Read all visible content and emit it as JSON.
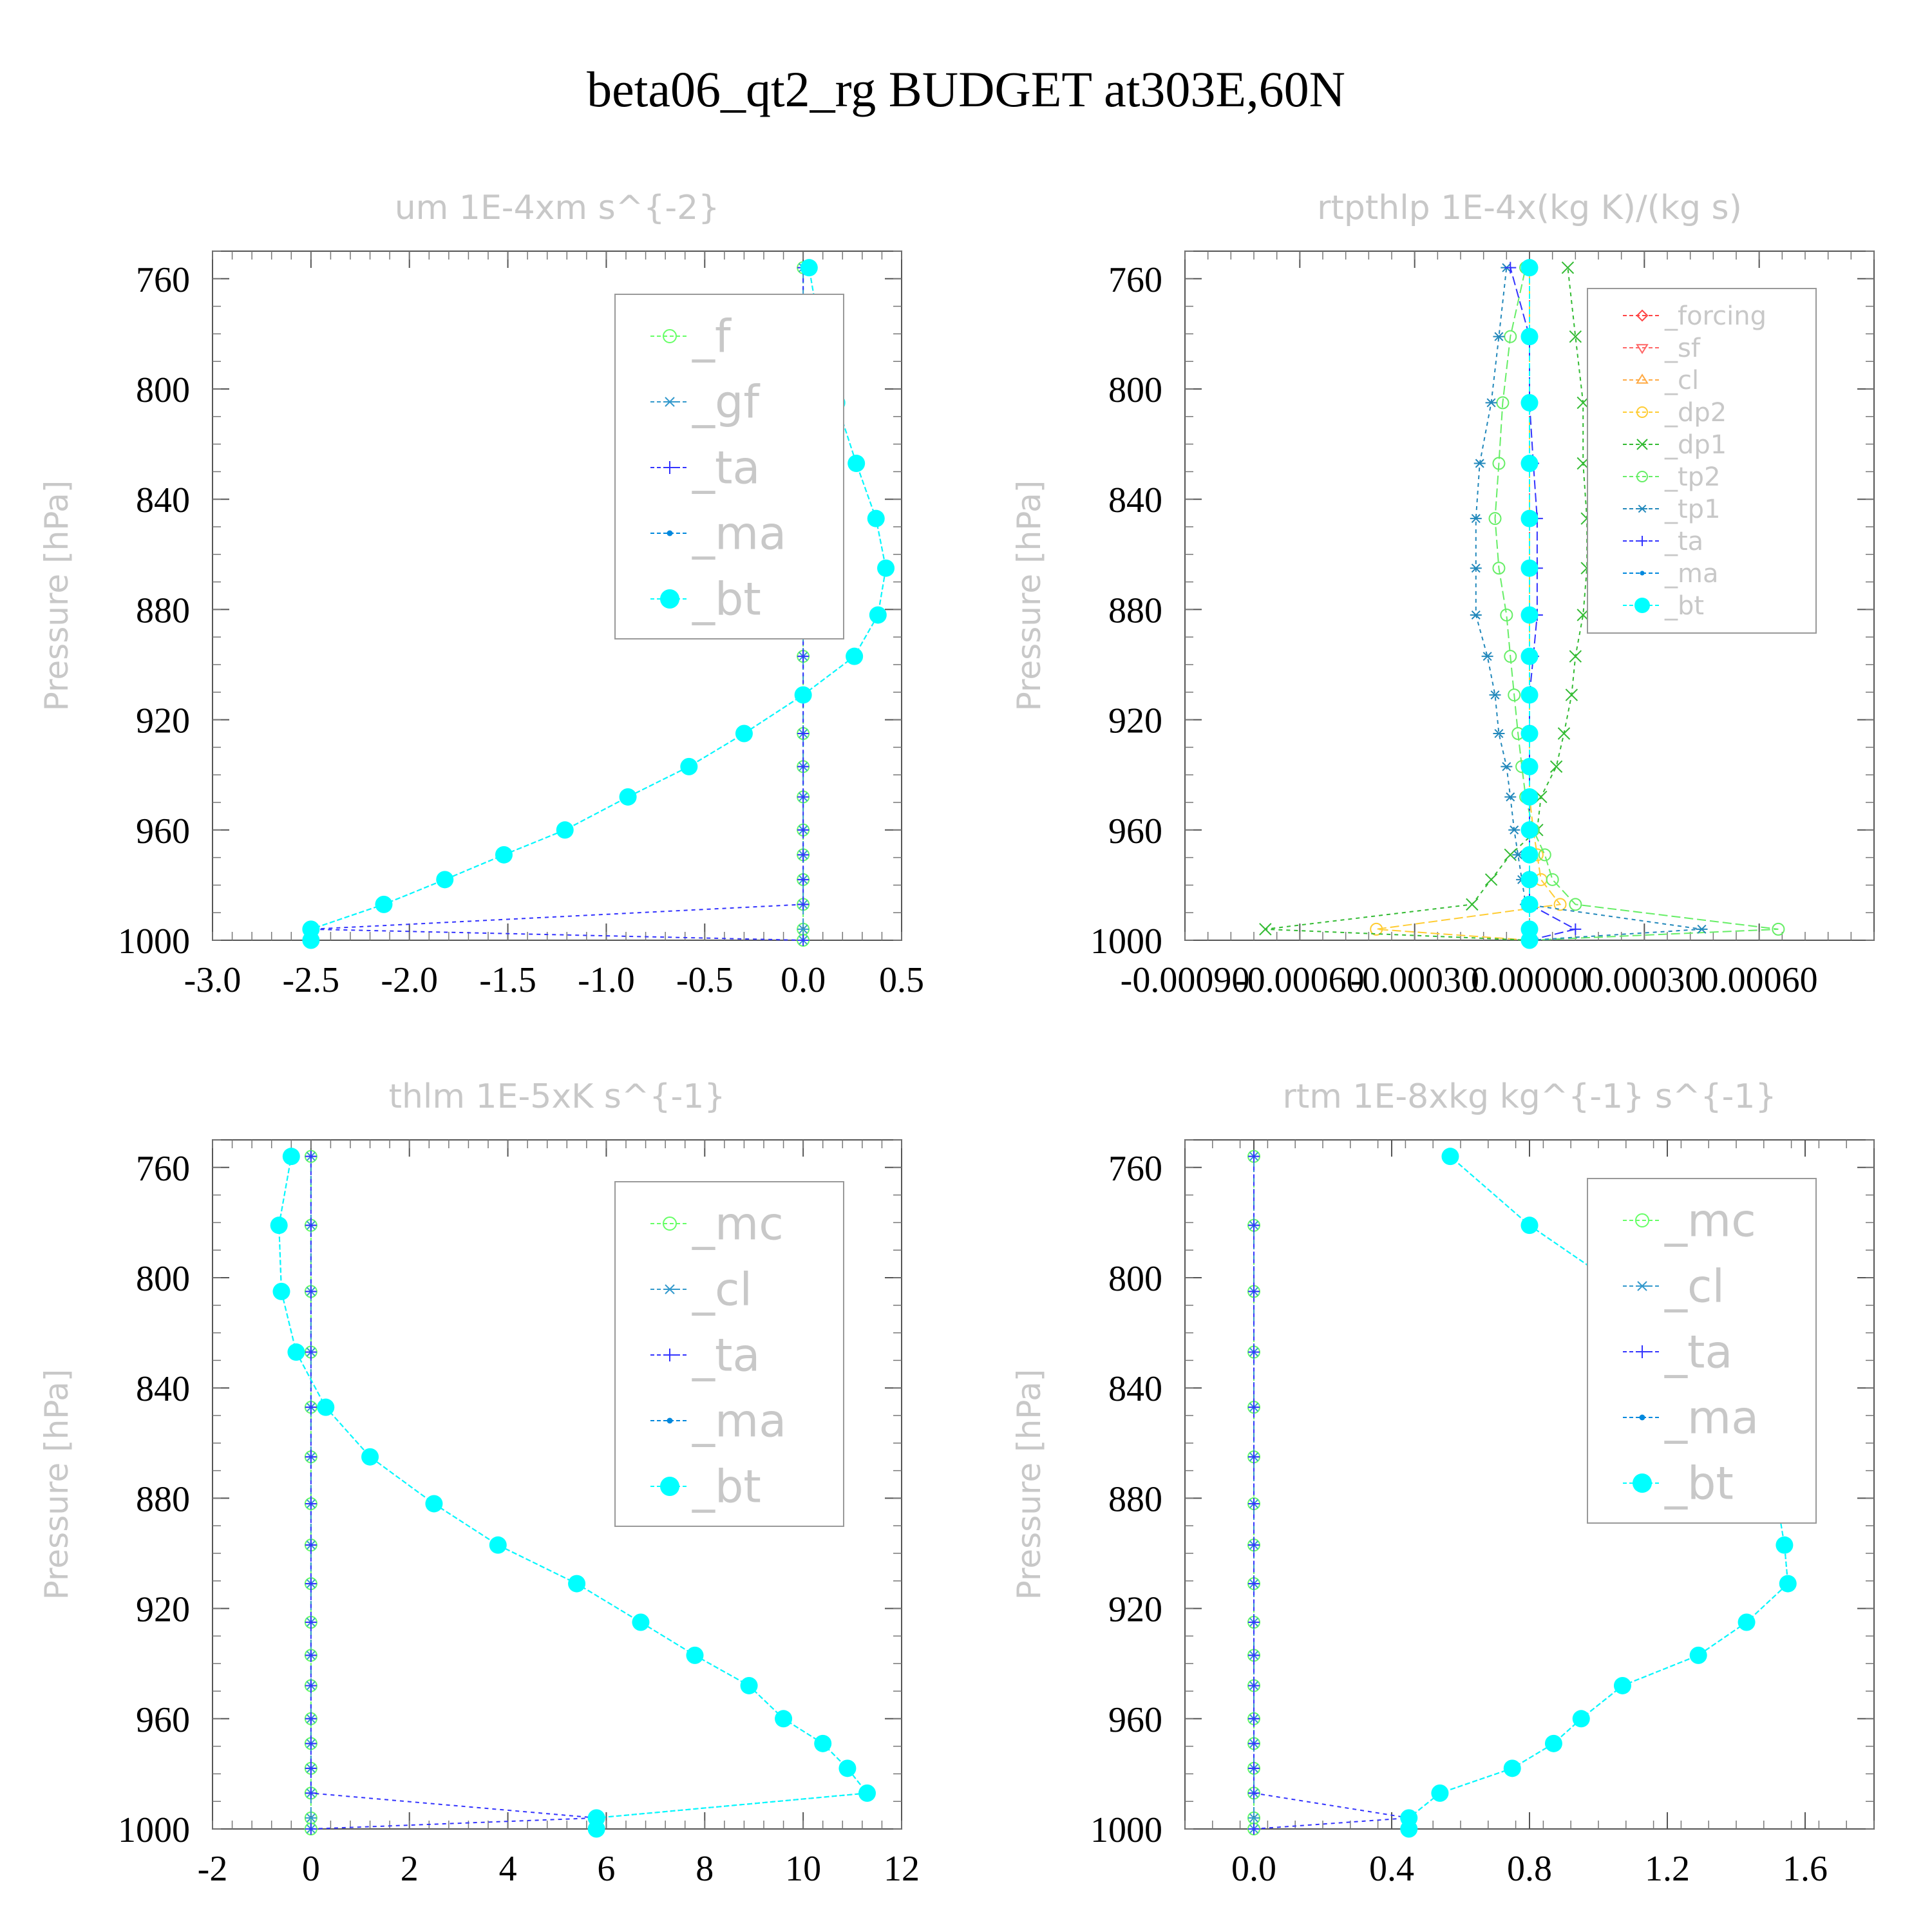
{
  "suptitle": "beta06_qt2_rg  BUDGET at303E,60N",
  "chart_data": [
    {
      "type": "line",
      "title": "um  1E-4xm s^{-2}",
      "ylabel": "Pressure [hPa]",
      "xlim": [
        -3.0,
        0.5
      ],
      "ylim": [
        1000,
        750
      ],
      "xticks": [
        "-3.0",
        "-2.5",
        "-2.0",
        "-1.5",
        "-1.0",
        "-0.5",
        "0.0",
        "0.5"
      ],
      "yticks": [
        "760",
        "800",
        "840",
        "880",
        "920",
        "960",
        "1000"
      ],
      "y": [
        1000,
        996,
        987,
        978,
        969,
        960,
        948,
        937,
        925,
        911,
        897,
        882,
        865,
        847,
        827,
        805,
        781,
        756
      ],
      "series": [
        {
          "name": "_f",
          "color": "#66ff66",
          "marker": "circle",
          "values": [
            0,
            0,
            0,
            0,
            0,
            0,
            0,
            0,
            0,
            0,
            0,
            0,
            0,
            0,
            0,
            0,
            0,
            0
          ]
        },
        {
          "name": "_gf",
          "color": "#3399cc",
          "marker": "asterisk",
          "values": [
            0,
            0,
            0,
            0,
            0,
            0,
            0,
            0,
            0,
            0,
            0,
            0,
            0,
            0,
            0,
            0,
            0,
            0
          ]
        },
        {
          "name": "_ta",
          "color": "#3333ff",
          "marker": "plus",
          "values": [
            0,
            -2.5,
            0,
            0,
            0,
            0,
            0,
            0,
            0,
            0,
            0,
            0,
            0,
            0,
            0,
            0,
            0,
            0
          ]
        },
        {
          "name": "_ma",
          "color": "#0088dd",
          "marker": "dot",
          "values": [
            -2.5,
            -2.5,
            -2.13,
            -1.82,
            -1.52,
            -1.21,
            -0.89,
            -0.58,
            -0.3,
            0.0,
            0.26,
            0.38,
            0.42,
            0.37,
            0.27,
            0.17,
            0.09,
            0.03
          ]
        },
        {
          "name": "_bt",
          "color": "#00ffff",
          "marker": "bigdot",
          "values": [
            -2.5,
            -2.5,
            -2.13,
            -1.82,
            -1.52,
            -1.21,
            -0.89,
            -0.58,
            -0.3,
            0.0,
            0.26,
            0.38,
            0.42,
            0.37,
            0.27,
            0.17,
            0.09,
            0.03
          ]
        }
      ]
    },
    {
      "type": "line",
      "title": "rtpthlp  1E-4x(kg K)/(kg s)",
      "ylabel": "Pressure [hPa]",
      "xlim": [
        -0.0009,
        0.0009
      ],
      "ylim": [
        1000,
        750
      ],
      "xticks": [
        "-0.00090",
        "-0.00060",
        "-0.00030",
        "0.00000",
        "0.00030",
        "0.00060"
      ],
      "yticks": [
        "760",
        "800",
        "840",
        "880",
        "920",
        "960",
        "1000"
      ],
      "y": [
        1000,
        996,
        987,
        978,
        969,
        960,
        948,
        937,
        925,
        911,
        897,
        882,
        865,
        847,
        827,
        805,
        781,
        756
      ],
      "series": [
        {
          "name": "_forcing",
          "color": "#ff4444",
          "marker": "diamond",
          "values": [
            0,
            0,
            0,
            0,
            0,
            0,
            0,
            0,
            0,
            0,
            0,
            0,
            0,
            0,
            0,
            0,
            0,
            0
          ]
        },
        {
          "name": "_sf",
          "color": "#ff6666",
          "marker": "tri-down",
          "values": [
            0,
            0,
            0,
            0,
            0,
            0,
            0,
            0,
            0,
            0,
            0,
            0,
            0,
            0,
            0,
            0,
            0,
            0
          ]
        },
        {
          "name": "_cl",
          "color": "#ffaa44",
          "marker": "tri-up",
          "values": [
            0,
            0,
            0,
            0,
            0,
            0,
            0,
            0,
            0,
            0,
            0,
            0,
            0,
            0,
            0,
            0,
            0,
            0
          ]
        },
        {
          "name": "_dp2",
          "color": "#ffcc33",
          "marker": "circle",
          "values": [
            0,
            -0.0004,
            8e-05,
            3e-05,
            2e-05,
            1e-05,
            0,
            0,
            0,
            0,
            0,
            0,
            0,
            0,
            0,
            0,
            0,
            0
          ]
        },
        {
          "name": "_dp1",
          "color": "#33bb33",
          "marker": "x",
          "values": [
            0,
            -0.00069,
            -0.00015,
            -0.0001,
            -5e-05,
            2e-05,
            3e-05,
            7e-05,
            9e-05,
            0.00011,
            0.00012,
            0.00014,
            0.00015,
            0.00015,
            0.00014,
            0.00014,
            0.00012,
            0.0001
          ]
        },
        {
          "name": "_tp2",
          "color": "#66ee66",
          "marker": "circle",
          "values": [
            0,
            0.00065,
            0.00012,
            6e-05,
            4e-05,
            1e-05,
            -1e-05,
            -2e-05,
            -3e-05,
            -4e-05,
            -5e-05,
            -6e-05,
            -8e-05,
            -9e-05,
            -8e-05,
            -7e-05,
            -5e-05,
            -1e-05
          ]
        },
        {
          "name": "_tp1",
          "color": "#2288bb",
          "marker": "asterisk",
          "values": [
            0,
            0.00045,
            -1e-05,
            -2e-05,
            -3e-05,
            -4e-05,
            -5e-05,
            -6e-05,
            -8e-05,
            -9e-05,
            -0.00011,
            -0.00014,
            -0.00014,
            -0.00014,
            -0.00013,
            -0.0001,
            -8e-05,
            -6e-05
          ]
        },
        {
          "name": "_ta",
          "color": "#3333ff",
          "marker": "plus",
          "values": [
            0,
            0.00012,
            0,
            0,
            0,
            0,
            0,
            0,
            0,
            0,
            1e-05,
            2e-05,
            2e-05,
            2e-05,
            1e-05,
            0,
            0,
            -5e-05
          ]
        },
        {
          "name": "_ma",
          "color": "#0088dd",
          "marker": "dot",
          "values": [
            0,
            0,
            0,
            0,
            0,
            0,
            0,
            0,
            0,
            0,
            0,
            0,
            0,
            0,
            0,
            0,
            0,
            0
          ]
        },
        {
          "name": "_bt",
          "color": "#00ffff",
          "marker": "bigdot",
          "values": [
            0,
            0,
            0,
            0,
            0,
            0,
            0,
            0,
            0,
            0,
            0,
            0,
            0,
            0,
            0,
            0,
            0,
            0
          ]
        }
      ]
    },
    {
      "type": "line",
      "title": "thlm  1E-5xK s^{-1}",
      "ylabel": "Pressure [hPa]",
      "xlim": [
        -2,
        12
      ],
      "ylim": [
        1000,
        750
      ],
      "xticks": [
        "-2",
        "0",
        "2",
        "4",
        "6",
        "8",
        "10",
        "12"
      ],
      "yticks": [
        "760",
        "800",
        "840",
        "880",
        "920",
        "960",
        "1000"
      ],
      "y": [
        1000,
        996,
        987,
        978,
        969,
        960,
        948,
        937,
        925,
        911,
        897,
        882,
        865,
        847,
        827,
        805,
        781,
        756
      ],
      "series": [
        {
          "name": "_mc",
          "color": "#66ff66",
          "marker": "circle",
          "values": [
            0,
            0,
            0,
            0,
            0,
            0,
            0,
            0,
            0,
            0,
            0,
            0,
            0,
            0,
            0,
            0,
            0,
            0
          ]
        },
        {
          "name": "_cl",
          "color": "#3399cc",
          "marker": "asterisk",
          "values": [
            0,
            0,
            0,
            0,
            0,
            0,
            0,
            0,
            0,
            0,
            0,
            0,
            0,
            0,
            0,
            0,
            0,
            0
          ]
        },
        {
          "name": "_ta",
          "color": "#3333ff",
          "marker": "plus",
          "values": [
            0,
            5.8,
            0,
            0,
            0,
            0,
            0,
            0,
            0,
            0,
            0,
            0,
            0,
            0,
            0,
            0,
            0,
            0
          ]
        },
        {
          "name": "_ma",
          "color": "#0088dd",
          "marker": "dot",
          "values": [
            5.8,
            5.8,
            11.3,
            10.9,
            10.4,
            9.6,
            8.9,
            7.8,
            6.7,
            5.4,
            3.8,
            2.5,
            1.2,
            0.3,
            -0.3,
            -0.6,
            -0.65,
            -0.4
          ]
        },
        {
          "name": "_bt",
          "color": "#00ffff",
          "marker": "bigdot",
          "values": [
            5.8,
            5.8,
            11.3,
            10.9,
            10.4,
            9.6,
            8.9,
            7.8,
            6.7,
            5.4,
            3.8,
            2.5,
            1.2,
            0.3,
            -0.3,
            -0.6,
            -0.65,
            -0.4
          ]
        }
      ]
    },
    {
      "type": "line",
      "title": "rtm  1E-8xkg kg^{-1} s^{-1}",
      "ylabel": "Pressure [hPa]",
      "xlim": [
        -0.2,
        1.8
      ],
      "ylim": [
        1000,
        750
      ],
      "xticks": [
        "0.0",
        "0.4",
        "0.8",
        "1.2",
        "1.6"
      ],
      "yticks": [
        "760",
        "800",
        "840",
        "880",
        "920",
        "960",
        "1000"
      ],
      "y": [
        1000,
        996,
        987,
        978,
        969,
        960,
        948,
        937,
        925,
        911,
        897,
        882,
        865,
        847,
        827,
        805,
        781,
        756
      ],
      "series": [
        {
          "name": "_mc",
          "color": "#66ff66",
          "marker": "circle",
          "values": [
            0,
            0,
            0,
            0,
            0,
            0,
            0,
            0,
            0,
            0,
            0,
            0,
            0,
            0,
            0,
            0,
            0,
            0
          ]
        },
        {
          "name": "_cl",
          "color": "#3399cc",
          "marker": "asterisk",
          "values": [
            0,
            0,
            0,
            0,
            0,
            0,
            0,
            0,
            0,
            0,
            0,
            0,
            0,
            0,
            0,
            0,
            0,
            0
          ]
        },
        {
          "name": "_ta",
          "color": "#3333ff",
          "marker": "plus",
          "values": [
            0,
            0.45,
            0,
            0,
            0,
            0,
            0,
            0,
            0,
            0,
            0,
            0,
            0,
            0,
            0,
            0,
            0,
            0
          ]
        },
        {
          "name": "_ma",
          "color": "#0088dd",
          "marker": "dot",
          "values": [
            0.45,
            0.45,
            0.54,
            0.75,
            0.87,
            0.95,
            1.07,
            1.29,
            1.43,
            1.55,
            1.54,
            1.52,
            1.43,
            1.37,
            1.26,
            1.08,
            0.8,
            0.57
          ]
        },
        {
          "name": "_bt",
          "color": "#00ffff",
          "marker": "bigdot",
          "values": [
            0.45,
            0.45,
            0.54,
            0.75,
            0.87,
            0.95,
            1.07,
            1.29,
            1.43,
            1.55,
            1.54,
            1.52,
            1.43,
            1.37,
            1.26,
            1.08,
            0.8,
            0.57
          ]
        }
      ]
    }
  ]
}
